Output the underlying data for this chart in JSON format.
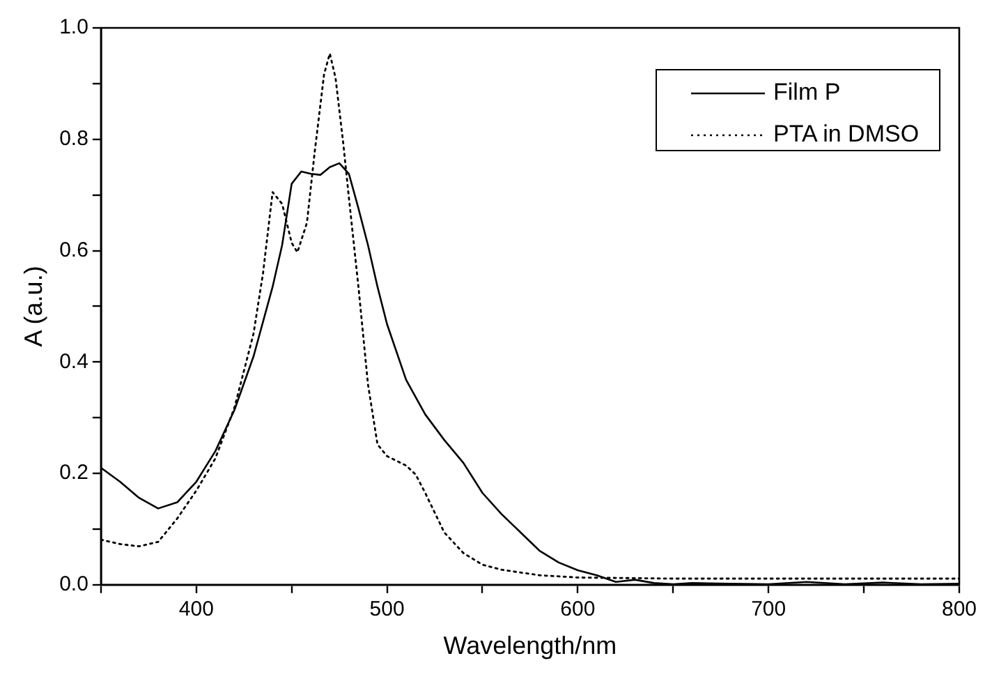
{
  "chart_data": {
    "type": "line",
    "xlabel": "Wavelength/nm",
    "ylabel": "A (a.u.)",
    "xlim": [
      350,
      800
    ],
    "ylim": [
      0,
      1.0
    ],
    "xticks": [
      {
        "value": 350,
        "label": null
      },
      400,
      {
        "value": 450,
        "label": null
      },
      500,
      {
        "value": 550,
        "label": null
      },
      600,
      {
        "value": 650,
        "label": null
      },
      700,
      {
        "value": 750,
        "label": null
      },
      800
    ],
    "yticks": [
      {
        "value": 0,
        "label": "0.0"
      },
      {
        "value": 0.1,
        "label": null
      },
      0.2,
      {
        "value": 0.3,
        "label": null
      },
      0.4,
      {
        "value": 0.5,
        "label": null
      },
      0.6,
      {
        "value": 0.7,
        "label": null
      },
      0.8,
      {
        "value": 0.9,
        "label": null
      },
      {
        "value": 1.0,
        "label": "1.0"
      }
    ],
    "grid": false,
    "legend": "top right",
    "marker": "none",
    "series": [
      {
        "name": "Film P",
        "color": "#000000",
        "line_style": "solid",
        "x": [
          350,
          360,
          370,
          380,
          390,
          400,
          410,
          420,
          430,
          440,
          445,
          450,
          455,
          460,
          465,
          470,
          475,
          480,
          485,
          490,
          495,
          500,
          510,
          520,
          530,
          540,
          550,
          560,
          570,
          580,
          590,
          600,
          610,
          620,
          630,
          640,
          650,
          660,
          680,
          700,
          720,
          740,
          760,
          780,
          800
        ],
        "values": [
          0.21,
          0.185,
          0.156,
          0.137,
          0.148,
          0.185,
          0.24,
          0.314,
          0.41,
          0.535,
          0.61,
          0.72,
          0.742,
          0.738,
          0.736,
          0.75,
          0.757,
          0.738,
          0.676,
          0.61,
          0.535,
          0.468,
          0.368,
          0.306,
          0.26,
          0.219,
          0.165,
          0.127,
          0.094,
          0.061,
          0.04,
          0.026,
          0.017,
          0.005,
          0.009,
          0.003,
          0.001,
          0.003,
          0.002,
          0.001,
          0.005,
          0.001,
          0.004,
          0.001,
          0.002
        ]
      },
      {
        "name": "PTA in DMSO",
        "color": "#000000",
        "line_style": "dotted",
        "x": [
          350,
          360,
          370,
          380,
          390,
          400,
          410,
          420,
          430,
          435,
          440,
          445,
          450,
          453,
          458,
          462,
          467,
          470,
          473,
          477,
          480,
          485,
          490,
          495,
          500,
          510,
          515,
          520,
          530,
          540,
          550,
          560,
          580,
          600,
          650,
          700,
          750,
          800
        ],
        "values": [
          0.081,
          0.073,
          0.069,
          0.077,
          0.119,
          0.169,
          0.227,
          0.318,
          0.451,
          0.56,
          0.705,
          0.684,
          0.614,
          0.597,
          0.65,
          0.775,
          0.917,
          0.954,
          0.91,
          0.794,
          0.695,
          0.535,
          0.36,
          0.252,
          0.231,
          0.214,
          0.198,
          0.165,
          0.094,
          0.057,
          0.036,
          0.027,
          0.017,
          0.013,
          0.011,
          0.011,
          0.011,
          0.011
        ]
      }
    ]
  }
}
